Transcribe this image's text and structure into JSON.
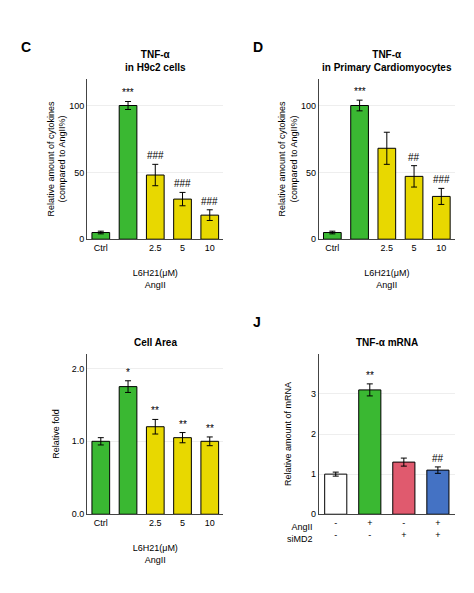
{
  "chart_data": [
    {
      "type": "bar",
      "panel": "C",
      "title": "TNF-α",
      "subtitle": "in H9c2 cells",
      "ylabel": "Relative amount of cytokines\n(compared to AngII%)",
      "xlabel": "L6H21(μM)\nAngII",
      "categories": [
        "Ctrl",
        null,
        "2.5",
        "5",
        "10"
      ],
      "values": [
        5,
        100,
        48,
        30,
        18
      ],
      "colors": [
        "#3ab832",
        "#3ab832",
        "#e8d800",
        "#e8d800",
        "#e8d800"
      ],
      "error_bars": [
        1,
        3,
        8,
        5,
        4
      ],
      "ylim": [
        0,
        120
      ],
      "yticks": [
        0,
        50,
        100
      ],
      "annotations": [
        {
          "text": "***",
          "x": 1
        },
        {
          "text": "###",
          "x": 2
        },
        {
          "text": "###",
          "x": 3
        },
        {
          "text": "###",
          "x": 4
        }
      ]
    },
    {
      "type": "bar",
      "panel": "D",
      "title": "TNF-α",
      "subtitle": "in Primary Cardiomyocytes",
      "ylabel": "Relative amount of cytokines\n(compared to AngII%)",
      "xlabel": "L6H21(μM)\nAngII",
      "categories": [
        "Ctrl",
        null,
        "2.5",
        "5",
        "10"
      ],
      "values": [
        5,
        100,
        68,
        47,
        32
      ],
      "colors": [
        "#3ab832",
        "#3ab832",
        "#e8d800",
        "#e8d800",
        "#e8d800"
      ],
      "error_bars": [
        1,
        4,
        12,
        8,
        6
      ],
      "ylim": [
        0,
        120
      ],
      "yticks": [
        0,
        50,
        100
      ],
      "annotations": [
        {
          "text": "***",
          "x": 1
        },
        {
          "text": "##",
          "x": 3
        },
        {
          "text": "###",
          "x": 4
        }
      ]
    },
    {
      "type": "bar",
      "title": "Cell Area",
      "ylabel": "Relative fold",
      "xlabel": "L6H21(μM)\nAngII",
      "categories": [
        "Ctrl",
        null,
        "2.5",
        "5",
        "10"
      ],
      "values": [
        1.0,
        1.75,
        1.2,
        1.05,
        1.0
      ],
      "colors": [
        "#3ab832",
        "#3ab832",
        "#e8d800",
        "#e8d800",
        "#e8d800"
      ],
      "error_bars": [
        0.05,
        0.08,
        0.1,
        0.07,
        0.06
      ],
      "ylim": [
        0,
        2.2
      ],
      "yticks": [
        {
          "value": 0,
          "label": "0.0"
        },
        {
          "value": 1.0,
          "label": "1.0"
        },
        {
          "value": 2.0,
          "label": "2.0"
        }
      ],
      "annotations": [
        {
          "text": "*",
          "x": 1
        },
        {
          "text": "**",
          "x": 2
        },
        {
          "text": "**",
          "x": 3
        },
        {
          "text": "**",
          "x": 4
        }
      ]
    },
    {
      "type": "bar",
      "panel": "J",
      "title": "TNF-α mRNA",
      "ylabel": "Relative amount of mRNA",
      "categories": [
        [
          "-",
          "-"
        ],
        [
          "+",
          "-"
        ],
        [
          "-",
          "+"
        ],
        [
          "+",
          "+"
        ]
      ],
      "category_rows": [
        "AngII",
        "siMD2"
      ],
      "values": [
        1.0,
        3.1,
        1.3,
        1.1
      ],
      "colors": [
        "#ffffff",
        "#3ab832",
        "#e05a6e",
        "#4472c4"
      ],
      "error_bars": [
        0.05,
        0.15,
        0.1,
        0.08
      ],
      "ylim": [
        0,
        4.0
      ],
      "yticks": [
        0,
        1,
        2,
        3
      ],
      "annotations": [
        {
          "text": "**",
          "x": 1
        },
        {
          "text": "##",
          "x": 3
        }
      ]
    }
  ]
}
